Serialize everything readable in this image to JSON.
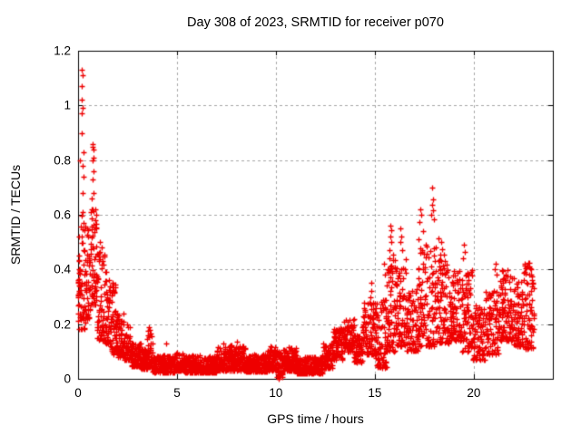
{
  "chart_data": {
    "type": "scatter",
    "title": "Day 308 of 2023, SRMTID for receiver p070",
    "xlabel": "GPS time / hours",
    "ylabel": "SRMTID / TECUs",
    "xlim": [
      0,
      24
    ],
    "ylim": [
      0,
      1.2
    ],
    "xticks": [
      0,
      5,
      10,
      15,
      20
    ],
    "xtick_labels": [
      "0",
      "5",
      "10",
      "15",
      "20"
    ],
    "yticks": [
      0,
      0.2,
      0.4,
      0.6,
      0.8,
      1,
      1.2
    ],
    "ytick_labels": [
      "0",
      "0.2",
      "0.4",
      "0.6",
      "0.8",
      "1",
      "1.2"
    ],
    "grid": true,
    "legend": "none",
    "marker": "plus",
    "marker_color": "#ee0000",
    "grid_color": "#a6a6a6",
    "axis_color": "#000000",
    "background_color": "#ffffff",
    "seed": 308,
    "band_segments": [
      [
        0.0,
        0.1,
        0.17,
        0.46,
        230
      ],
      [
        0.1,
        0.35,
        0.18,
        0.6,
        150
      ],
      [
        0.35,
        0.6,
        0.22,
        0.56,
        140
      ],
      [
        0.6,
        0.95,
        0.27,
        0.62,
        150
      ],
      [
        0.95,
        1.35,
        0.14,
        0.48,
        150
      ],
      [
        1.35,
        1.65,
        0.13,
        0.4,
        140
      ],
      [
        1.65,
        1.9,
        0.09,
        0.35,
        150
      ],
      [
        1.9,
        2.3,
        0.08,
        0.24,
        140
      ],
      [
        2.3,
        2.65,
        0.07,
        0.2,
        140
      ],
      [
        2.65,
        3.15,
        0.045,
        0.13,
        150
      ],
      [
        3.15,
        3.5,
        0.035,
        0.11,
        150
      ],
      [
        3.5,
        3.75,
        0.04,
        0.18,
        160
      ],
      [
        3.75,
        4.85,
        0.022,
        0.085,
        150
      ],
      [
        4.85,
        5.35,
        0.03,
        0.1,
        150
      ],
      [
        5.35,
        7.0,
        0.022,
        0.085,
        150
      ],
      [
        7.0,
        7.65,
        0.03,
        0.12,
        150
      ],
      [
        7.65,
        8.45,
        0.03,
        0.125,
        150
      ],
      [
        8.45,
        9.6,
        0.025,
        0.09,
        150
      ],
      [
        9.6,
        10.05,
        0.03,
        0.12,
        150
      ],
      [
        10.05,
        10.35,
        0.005,
        0.1,
        150
      ],
      [
        10.35,
        11.05,
        0.03,
        0.115,
        150
      ],
      [
        11.05,
        12.35,
        0.02,
        0.08,
        150
      ],
      [
        12.35,
        12.85,
        0.04,
        0.13,
        140
      ],
      [
        12.85,
        13.35,
        0.07,
        0.19,
        130
      ],
      [
        13.35,
        13.95,
        0.1,
        0.22,
        130
      ],
      [
        13.95,
        14.35,
        0.06,
        0.16,
        130
      ],
      [
        14.35,
        15.05,
        0.09,
        0.28,
        125
      ],
      [
        15.05,
        15.6,
        0.04,
        0.3,
        120
      ],
      [
        15.6,
        16.05,
        0.1,
        0.46,
        120
      ],
      [
        16.05,
        16.6,
        0.12,
        0.44,
        120
      ],
      [
        16.6,
        17.15,
        0.1,
        0.33,
        120
      ],
      [
        17.15,
        17.7,
        0.12,
        0.5,
        120
      ],
      [
        17.7,
        18.25,
        0.12,
        0.52,
        120
      ],
      [
        18.25,
        18.75,
        0.13,
        0.46,
        120
      ],
      [
        18.75,
        19.4,
        0.14,
        0.4,
        120
      ],
      [
        19.4,
        19.95,
        0.1,
        0.4,
        120
      ],
      [
        19.95,
        20.6,
        0.07,
        0.27,
        120
      ],
      [
        20.6,
        21.25,
        0.09,
        0.33,
        120
      ],
      [
        21.25,
        21.95,
        0.14,
        0.4,
        120
      ],
      [
        21.95,
        22.5,
        0.12,
        0.37,
        120
      ],
      [
        22.5,
        23.05,
        0.11,
        0.43,
        120
      ]
    ],
    "peak_points": [
      [
        0.18,
        1.13
      ],
      [
        0.22,
        1.11
      ],
      [
        0.2,
        1.07
      ],
      [
        0.19,
        1.02
      ],
      [
        0.21,
        0.99
      ],
      [
        0.18,
        0.97
      ],
      [
        0.2,
        0.9
      ],
      [
        0.1,
        0.8
      ],
      [
        0.27,
        0.83
      ],
      [
        0.24,
        0.78
      ],
      [
        0.26,
        0.74
      ],
      [
        0.22,
        0.68
      ],
      [
        0.23,
        0.61
      ],
      [
        0.28,
        0.57
      ],
      [
        0.06,
        0.52
      ],
      [
        0.72,
        0.86
      ],
      [
        0.75,
        0.85
      ],
      [
        0.78,
        0.84
      ],
      [
        0.8,
        0.81
      ],
      [
        0.74,
        0.8
      ],
      [
        0.77,
        0.76
      ],
      [
        0.73,
        0.73
      ],
      [
        0.79,
        0.68
      ],
      [
        0.7,
        0.66
      ],
      [
        0.85,
        0.62
      ],
      [
        0.88,
        0.58
      ],
      [
        0.92,
        0.55
      ],
      [
        0.45,
        0.55
      ],
      [
        0.5,
        0.52
      ],
      [
        1.1,
        0.5
      ],
      [
        1.2,
        0.48
      ],
      [
        1.05,
        0.46
      ],
      [
        1.75,
        0.35
      ],
      [
        1.78,
        0.32
      ],
      [
        3.6,
        0.19
      ],
      [
        3.63,
        0.165
      ],
      [
        4.45,
        0.13
      ],
      [
        7.35,
        0.13
      ],
      [
        8.05,
        0.135
      ],
      [
        9.75,
        0.12
      ],
      [
        10.65,
        0.115
      ],
      [
        10.1,
        0.005
      ],
      [
        10.13,
        0.0
      ],
      [
        14.8,
        0.35
      ],
      [
        14.84,
        0.32
      ],
      [
        14.77,
        0.3
      ],
      [
        14.9,
        0.28
      ],
      [
        15.45,
        0.42
      ],
      [
        15.5,
        0.38
      ],
      [
        15.8,
        0.56
      ],
      [
        15.82,
        0.545
      ],
      [
        15.79,
        0.52
      ],
      [
        15.85,
        0.5
      ],
      [
        15.76,
        0.47
      ],
      [
        16.3,
        0.55
      ],
      [
        16.33,
        0.52
      ],
      [
        16.28,
        0.5
      ],
      [
        16.36,
        0.47
      ],
      [
        17.3,
        0.62
      ],
      [
        17.34,
        0.6
      ],
      [
        17.27,
        0.575
      ],
      [
        17.42,
        0.54
      ],
      [
        17.22,
        0.51
      ],
      [
        17.9,
        0.7
      ],
      [
        17.92,
        0.655
      ],
      [
        17.88,
        0.635
      ],
      [
        17.95,
        0.615
      ],
      [
        17.85,
        0.6
      ],
      [
        17.98,
        0.585
      ],
      [
        18.35,
        0.5
      ],
      [
        18.4,
        0.475
      ],
      [
        18.3,
        0.455
      ],
      [
        19.5,
        0.49
      ],
      [
        19.55,
        0.465
      ],
      [
        19.45,
        0.44
      ],
      [
        21.1,
        0.42
      ],
      [
        21.05,
        0.4
      ],
      [
        21.15,
        0.38
      ],
      [
        22.6,
        0.42
      ],
      [
        22.63,
        0.405
      ],
      [
        22.56,
        0.39
      ],
      [
        22.9,
        0.4
      ],
      [
        22.95,
        0.375
      ],
      [
        23.0,
        0.35
      ]
    ]
  }
}
